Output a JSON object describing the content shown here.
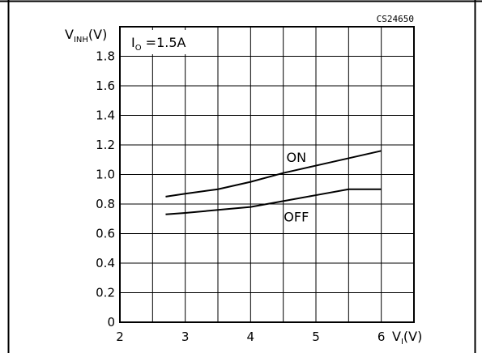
{
  "chart_data": {
    "type": "line",
    "code": "CS24650",
    "condition": {
      "prefix": "I",
      "sub": "O",
      "suffix": " =1.5A"
    },
    "ylabel": {
      "prefix": "V",
      "sub": "INH",
      "suffix": "(V)"
    },
    "xlabel": {
      "prefix": "V",
      "sub": "I",
      "suffix": "(V)"
    },
    "xlim": [
      2,
      6.5
    ],
    "ylim": [
      0,
      2.0
    ],
    "x_ticks": [
      2,
      3,
      4,
      5,
      6
    ],
    "y_ticks": [
      0,
      0.2,
      0.4,
      0.6,
      0.8,
      1.0,
      1.2,
      1.4,
      1.6,
      1.8
    ],
    "x_ticks_labels": [
      "2",
      "3",
      "4",
      "5",
      "6"
    ],
    "y_ticks_labels": [
      "0",
      "0.2",
      "0.4",
      "0.6",
      "0.8",
      "1.0",
      "1.2",
      "1.4",
      "1.6",
      "1.8"
    ],
    "grid": true,
    "series": [
      {
        "name": "ON",
        "x": [
          2.7,
          3.0,
          3.5,
          4.0,
          4.5,
          5.0,
          5.5,
          6.0
        ],
        "y": [
          0.85,
          0.87,
          0.9,
          0.95,
          1.01,
          1.06,
          1.11,
          1.16
        ]
      },
      {
        "name": "OFF",
        "x": [
          2.7,
          3.0,
          3.5,
          4.0,
          4.5,
          5.0,
          5.5,
          6.0
        ],
        "y": [
          0.73,
          0.74,
          0.76,
          0.78,
          0.82,
          0.86,
          0.9,
          0.9
        ]
      }
    ]
  }
}
